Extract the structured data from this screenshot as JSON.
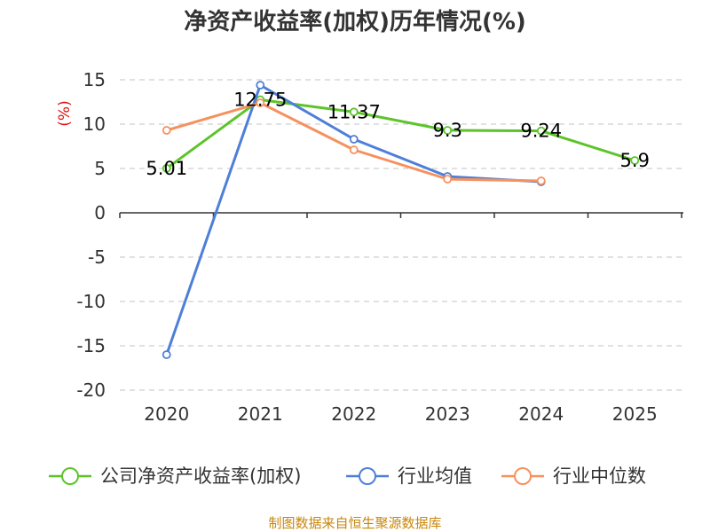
{
  "chart_data": {
    "type": "line",
    "title": "净资产收益率(加权)历年情况(%)",
    "ylabel": "(%)",
    "xlabel": "",
    "categories": [
      "2020",
      "2021",
      "2022",
      "2023",
      "2024",
      "2025"
    ],
    "ylim": [
      -20,
      15
    ],
    "yticks": [
      15,
      10,
      5,
      0,
      -5,
      -10,
      -15,
      -20
    ],
    "grid": true,
    "legend_position": "bottom",
    "series": [
      {
        "name": "公司净资产收益率(加权)",
        "color": "#5cc42a",
        "values": [
          5.01,
          12.75,
          11.37,
          9.3,
          9.24,
          5.9
        ],
        "labels": [
          "5.01",
          "12.75",
          "11.37",
          "9.3",
          "9.24",
          "5.9"
        ]
      },
      {
        "name": "行业均值",
        "color": "#4e7fd8",
        "values": [
          -16.0,
          14.4,
          8.3,
          4.1,
          3.5,
          null
        ]
      },
      {
        "name": "行业中位数",
        "color": "#f6915e",
        "values": [
          9.3,
          12.4,
          7.1,
          3.8,
          3.6,
          null
        ]
      }
    ],
    "source": "制图数据来自恒生聚源数据库"
  }
}
